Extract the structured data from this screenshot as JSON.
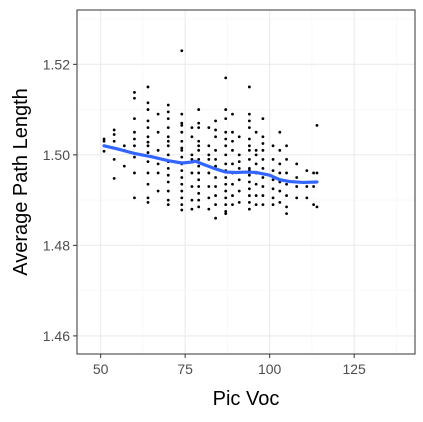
{
  "chart_data": {
    "type": "scatter",
    "title": "",
    "xlabel": "Pic Voc",
    "ylabel": "Average Path Length",
    "xlim": [
      43,
      143
    ],
    "ylim": [
      1.456,
      1.532
    ],
    "x_ticks": [
      50,
      75,
      100,
      125
    ],
    "y_ticks": [
      1.46,
      1.48,
      1.5,
      1.52
    ],
    "x_tick_labels": [
      "50",
      "75",
      "100",
      "125"
    ],
    "y_tick_labels": [
      "1.46",
      "1.48",
      "1.50",
      "1.52"
    ],
    "grid": true,
    "colors": {
      "points": "#000000",
      "smooth": "#3366ff",
      "grid_major": "#ebebeb",
      "grid_minor": "#f5f5f5",
      "panel_border": "#333333"
    },
    "series": [
      {
        "kind": "points",
        "points": [
          [
            51,
            1.503
          ],
          [
            51,
            1.5008
          ],
          [
            51,
            1.502
          ],
          [
            51,
            1.5035
          ],
          [
            54,
            1.499
          ],
          [
            54,
            1.4948
          ],
          [
            54,
            1.503
          ],
          [
            54,
            1.5045
          ],
          [
            54,
            1.5055
          ],
          [
            54,
            1.5015
          ],
          [
            57,
            1.501
          ],
          [
            57,
            1.4975
          ],
          [
            57,
            1.502
          ],
          [
            60,
            1.5035
          ],
          [
            60,
            1.496
          ],
          [
            60,
            1.4905
          ],
          [
            60,
            1.508
          ],
          [
            60,
            1.5125
          ],
          [
            60,
            1.5138
          ],
          [
            60,
            1.502
          ],
          [
            60,
            1.4995
          ],
          [
            60,
            1.505
          ],
          [
            64,
            1.515
          ],
          [
            64,
            1.51
          ],
          [
            64,
            1.506
          ],
          [
            64,
            1.504
          ],
          [
            64,
            1.502
          ],
          [
            64,
            1.5005
          ],
          [
            64,
            1.4985
          ],
          [
            64,
            1.496
          ],
          [
            64,
            1.4935
          ],
          [
            64,
            1.4905
          ],
          [
            64,
            1.4895
          ],
          [
            64,
            1.5075
          ],
          [
            64,
            1.5115
          ],
          [
            64,
            1.5028
          ],
          [
            67,
            1.501
          ],
          [
            67,
            1.498
          ],
          [
            67,
            1.492
          ],
          [
            67,
            1.505
          ],
          [
            67,
            1.509
          ],
          [
            67,
            1.496
          ],
          [
            70,
            1.511
          ],
          [
            70,
            1.508
          ],
          [
            70,
            1.506
          ],
          [
            70,
            1.504
          ],
          [
            70,
            1.502
          ],
          [
            70,
            1.5
          ],
          [
            70,
            1.4985
          ],
          [
            70,
            1.497
          ],
          [
            70,
            1.4955
          ],
          [
            70,
            1.494
          ],
          [
            70,
            1.492
          ],
          [
            70,
            1.49
          ],
          [
            70,
            1.489
          ],
          [
            70,
            1.5095
          ],
          [
            70,
            1.503
          ],
          [
            74,
            1.523
          ],
          [
            74,
            1.509
          ],
          [
            74,
            1.507
          ],
          [
            74,
            1.505
          ],
          [
            74,
            1.503
          ],
          [
            74,
            1.501
          ],
          [
            74,
            1.4995
          ],
          [
            74,
            1.498
          ],
          [
            74,
            1.4965
          ],
          [
            74,
            1.495
          ],
          [
            74,
            1.4935
          ],
          [
            74,
            1.492
          ],
          [
            74,
            1.4905
          ],
          [
            74,
            1.489
          ],
          [
            74,
            1.4878
          ],
          [
            74,
            1.5065
          ],
          [
            74,
            1.5015
          ],
          [
            77,
            1.504
          ],
          [
            77,
            1.5
          ],
          [
            77,
            1.496
          ],
          [
            77,
            1.493
          ],
          [
            77,
            1.49
          ],
          [
            77,
            1.488
          ],
          [
            77,
            1.499
          ],
          [
            77,
            1.506
          ],
          [
            79,
            1.51
          ],
          [
            79,
            1.506
          ],
          [
            79,
            1.503
          ],
          [
            79,
            1.501
          ],
          [
            79,
            1.499
          ],
          [
            79,
            1.4975
          ],
          [
            79,
            1.496
          ],
          [
            79,
            1.4945
          ],
          [
            79,
            1.493
          ],
          [
            79,
            1.4915
          ],
          [
            79,
            1.49
          ],
          [
            79,
            1.4885
          ],
          [
            79,
            1.507
          ],
          [
            79,
            1.502
          ],
          [
            82,
            1.506
          ],
          [
            82,
            1.502
          ],
          [
            82,
            1.499
          ],
          [
            82,
            1.496
          ],
          [
            82,
            1.493
          ],
          [
            82,
            1.4905
          ],
          [
            82,
            1.488
          ],
          [
            82,
            1.5
          ],
          [
            84,
            1.5075
          ],
          [
            84,
            1.504
          ],
          [
            84,
            1.501
          ],
          [
            84,
            1.499
          ],
          [
            84,
            1.497
          ],
          [
            84,
            1.495
          ],
          [
            84,
            1.493
          ],
          [
            84,
            1.491
          ],
          [
            84,
            1.489
          ],
          [
            84,
            1.486
          ],
          [
            84,
            1.5055
          ],
          [
            84,
            1.4975
          ],
          [
            87,
            1.517
          ],
          [
            87,
            1.51
          ],
          [
            87,
            1.505
          ],
          [
            87,
            1.502
          ],
          [
            87,
            1.5
          ],
          [
            87,
            1.498
          ],
          [
            87,
            1.4965
          ],
          [
            87,
            1.495
          ],
          [
            87,
            1.4935
          ],
          [
            87,
            1.492
          ],
          [
            87,
            1.4905
          ],
          [
            87,
            1.489
          ],
          [
            87,
            1.4875
          ],
          [
            87,
            1.487
          ],
          [
            87,
            1.508
          ],
          [
            87,
            1.5035
          ],
          [
            89,
            1.509
          ],
          [
            89,
            1.505
          ],
          [
            89,
            1.501
          ],
          [
            89,
            1.498
          ],
          [
            89,
            1.496
          ],
          [
            89,
            1.4935
          ],
          [
            89,
            1.491
          ],
          [
            89,
            1.489
          ],
          [
            89,
            1.503
          ],
          [
            91,
            1.504
          ],
          [
            91,
            1.5
          ],
          [
            91,
            1.497
          ],
          [
            91,
            1.4945
          ],
          [
            91,
            1.492
          ],
          [
            91,
            1.4895
          ],
          [
            91,
            1.4985
          ],
          [
            94,
            1.515
          ],
          [
            94,
            1.509
          ],
          [
            94,
            1.506
          ],
          [
            94,
            1.5035
          ],
          [
            94,
            1.501
          ],
          [
            94,
            1.499
          ],
          [
            94,
            1.497
          ],
          [
            94,
            1.4955
          ],
          [
            94,
            1.494
          ],
          [
            94,
            1.4925
          ],
          [
            94,
            1.491
          ],
          [
            94,
            1.4895
          ],
          [
            94,
            1.488
          ],
          [
            94,
            1.5075
          ],
          [
            94,
            1.502
          ],
          [
            94,
            1.4965
          ],
          [
            96,
            1.505
          ],
          [
            96,
            1.501
          ],
          [
            96,
            1.498
          ],
          [
            96,
            1.496
          ],
          [
            96,
            1.4935
          ],
          [
            96,
            1.491
          ],
          [
            96,
            1.489
          ],
          [
            96,
            1.5
          ],
          [
            98,
            1.508
          ],
          [
            98,
            1.504
          ],
          [
            98,
            1.501
          ],
          [
            98,
            1.499
          ],
          [
            98,
            1.497
          ],
          [
            98,
            1.495
          ],
          [
            98,
            1.493
          ],
          [
            98,
            1.491
          ],
          [
            98,
            1.489
          ],
          [
            98,
            1.5025
          ],
          [
            101,
            1.502
          ],
          [
            101,
            1.499
          ],
          [
            101,
            1.4965
          ],
          [
            101,
            1.4945
          ],
          [
            101,
            1.4925
          ],
          [
            101,
            1.4905
          ],
          [
            101,
            1.489
          ],
          [
            103,
            1.505
          ],
          [
            103,
            1.501
          ],
          [
            103,
            1.498
          ],
          [
            103,
            1.496
          ],
          [
            103,
            1.494
          ],
          [
            103,
            1.492
          ],
          [
            103,
            1.4895
          ],
          [
            105,
            1.502
          ],
          [
            105,
            1.499
          ],
          [
            105,
            1.496
          ],
          [
            105,
            1.4935
          ],
          [
            105,
            1.491
          ],
          [
            105,
            1.4885
          ],
          [
            105,
            1.487
          ],
          [
            108,
            1.498
          ],
          [
            108,
            1.495
          ],
          [
            108,
            1.493
          ],
          [
            108,
            1.4905
          ],
          [
            111,
            1.4965
          ],
          [
            111,
            1.493
          ],
          [
            111,
            1.4905
          ],
          [
            113,
            1.496
          ],
          [
            113,
            1.493
          ],
          [
            113,
            1.489
          ],
          [
            114,
            1.5065
          ],
          [
            114,
            1.496
          ],
          [
            114,
            1.4885
          ]
        ]
      },
      {
        "kind": "smooth",
        "points": [
          [
            51,
            1.502
          ],
          [
            55,
            1.5013
          ],
          [
            60,
            1.5003
          ],
          [
            65,
            1.4996
          ],
          [
            70,
            1.4987
          ],
          [
            74,
            1.4982
          ],
          [
            77,
            1.4984
          ],
          [
            78,
            1.4986
          ],
          [
            80,
            1.498
          ],
          [
            84,
            1.4969
          ],
          [
            87,
            1.4962
          ],
          [
            90,
            1.4961
          ],
          [
            93,
            1.4962
          ],
          [
            96,
            1.4961
          ],
          [
            100,
            1.4955
          ],
          [
            103,
            1.4945
          ],
          [
            106,
            1.4941
          ],
          [
            110,
            1.4939
          ],
          [
            114,
            1.494
          ]
        ]
      }
    ]
  }
}
